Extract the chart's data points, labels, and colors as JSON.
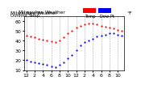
{
  "title": "Milwaukee Weather Outdoor Temperature vs Dew Point (24 Hours)",
  "temp_color": "#ff0000",
  "dew_color": "#0000ff",
  "bg_color": "#ffffff",
  "grid_color": "#aaaaaa",
  "border_color": "#000000",
  "ylim": [
    10,
    65
  ],
  "yticks": [
    10,
    20,
    30,
    40,
    50,
    60
  ],
  "ytick_labels": [
    "10",
    "20",
    "30",
    "40",
    "50",
    "60"
  ],
  "x_hours": [
    0,
    1,
    2,
    3,
    4,
    5,
    6,
    7,
    8,
    9,
    10,
    11,
    12,
    13,
    14,
    15,
    16,
    17,
    18,
    19,
    20,
    21,
    22,
    23
  ],
  "temp_vals": [
    45,
    44,
    43,
    42,
    41,
    40,
    39,
    38,
    40,
    43,
    47,
    50,
    53,
    55,
    56,
    57,
    57,
    56,
    55,
    54,
    53,
    52,
    51,
    50
  ],
  "dew_vals": [
    20,
    19,
    18,
    17,
    16,
    15,
    14,
    13,
    15,
    18,
    22,
    25,
    30,
    35,
    38,
    40,
    42,
    44,
    45,
    46,
    47,
    47,
    46,
    45
  ],
  "xtick_positions": [
    0,
    2,
    4,
    6,
    8,
    10,
    12,
    14,
    16,
    18,
    20,
    22
  ],
  "xtick_labels": [
    "12",
    "2",
    "4",
    "6",
    "8",
    "10",
    "12",
    "2",
    "4",
    "6",
    "8",
    "10"
  ],
  "marker_size": 2.5,
  "legend_temp_label": "Temp",
  "legend_dew_label": "Dew Pt",
  "font_size": 4.5,
  "title_font_size": 4.2,
  "legend_box_color_temp": "#ff0000",
  "legend_box_color_dew": "#0000ff"
}
